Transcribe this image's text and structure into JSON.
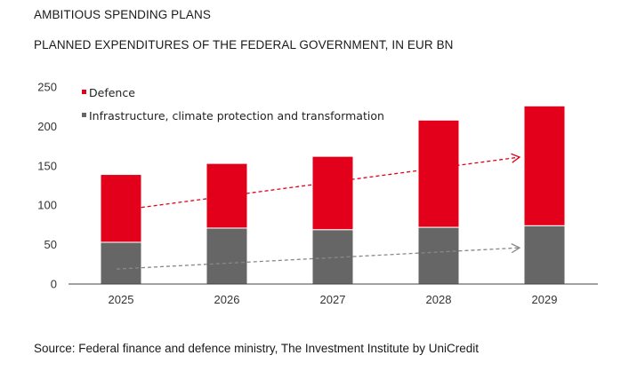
{
  "header": {
    "title": "AMBITIOUS SPENDING PLANS",
    "subtitle": "PLANNED EXPENDITURES OF THE FEDERAL GOVERNMENT, IN EUR BN",
    "source": "Source: Federal finance and defence ministry, The Investment Institute by UniCredit"
  },
  "colors": {
    "defence": "#e2001a",
    "infrastructure": "#666666",
    "defence_trend": "#e2001a",
    "infrastructure_trend": "#888888",
    "axis": "#444444"
  },
  "chart_data": {
    "type": "bar",
    "stacked": true,
    "title": "PLANNED EXPENDITURES OF THE FEDERAL GOVERNMENT, IN EUR BN",
    "categories": [
      "2025",
      "2026",
      "2027",
      "2028",
      "2029"
    ],
    "series": [
      {
        "name": "Infrastructure, climate protection and transformation",
        "color": "#666666",
        "values": [
          53,
          71,
          69,
          72,
          74
        ]
      },
      {
        "name": "Defence",
        "color": "#e2001a",
        "values": [
          86,
          82,
          93,
          136,
          152
        ]
      }
    ],
    "ylim": [
      0,
      250
    ],
    "yticks": [
      0,
      50,
      100,
      150,
      200,
      250
    ],
    "xlabel": "",
    "ylabel": "",
    "grid": false,
    "legend_position": "top-left",
    "trend_arrows": [
      {
        "series": "Defence",
        "style": "dashed",
        "from": {
          "x": "2025",
          "y": 93
        },
        "to": {
          "x": "2029",
          "y": 161
        }
      },
      {
        "series": "Infrastructure, climate protection and transformation",
        "style": "dashed",
        "from": {
          "x": "2025",
          "y": 19
        },
        "to": {
          "x": "2029",
          "y": 46
        }
      }
    ]
  }
}
